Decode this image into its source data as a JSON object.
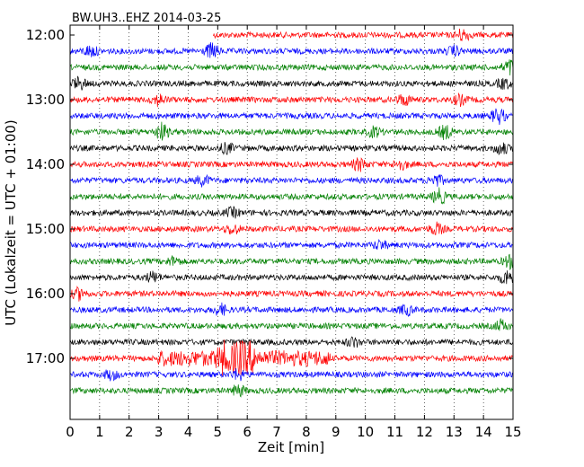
{
  "chart_data": {
    "type": "line",
    "title": "BW.UH3..EHZ 2014-03-25",
    "xlabel": "Zeit  [min]",
    "ylabel": "UTC (Lokalzeit = UTC + 01:00)",
    "xlim": [
      0,
      15
    ],
    "x_ticks": [
      "0",
      "1",
      "2",
      "3",
      "4",
      "5",
      "6",
      "7",
      "8",
      "9",
      "10",
      "11",
      "12",
      "13",
      "14",
      "15"
    ],
    "y_tick_labels": [
      "12:00",
      "13:00",
      "14:00",
      "15:00",
      "16:00",
      "17:00"
    ],
    "grid": "vertical dotted",
    "trace_colors": [
      "#ff0000",
      "#0000ff",
      "#008000",
      "#000000"
    ],
    "traces": [
      {
        "start": "12:00",
        "color": "#ff0000",
        "x_start": 4.85,
        "events": [
          {
            "t": 13.3,
            "amp": 2.0
          }
        ]
      },
      {
        "start": "12:15",
        "color": "#0000ff",
        "events": [
          {
            "t": 0.7,
            "amp": 1.8
          },
          {
            "t": 4.8,
            "amp": 2.5
          },
          {
            "t": 13.0,
            "amp": 1.5
          }
        ]
      },
      {
        "start": "12:30",
        "color": "#008000",
        "events": [
          {
            "t": 14.9,
            "amp": 2.5
          }
        ]
      },
      {
        "start": "12:45",
        "color": "#000000",
        "events": [
          {
            "t": 0.3,
            "amp": 2.0
          },
          {
            "t": 14.7,
            "amp": 1.6
          }
        ]
      },
      {
        "start": "13:00",
        "color": "#ff0000",
        "events": [
          {
            "t": 3.0,
            "amp": 1.8
          },
          {
            "t": 11.3,
            "amp": 1.8
          },
          {
            "t": 13.2,
            "amp": 1.6
          }
        ]
      },
      {
        "start": "13:15",
        "color": "#0000ff",
        "events": [
          {
            "t": 14.5,
            "amp": 2.6
          }
        ]
      },
      {
        "start": "13:30",
        "color": "#008000",
        "events": [
          {
            "t": 3.1,
            "amp": 2.8
          },
          {
            "t": 10.3,
            "amp": 1.6
          },
          {
            "t": 12.7,
            "amp": 2.2
          }
        ]
      },
      {
        "start": "13:45",
        "color": "#000000",
        "events": [
          {
            "t": 5.3,
            "amp": 1.6
          },
          {
            "t": 14.6,
            "amp": 2.0
          }
        ]
      },
      {
        "start": "14:00",
        "color": "#ff0000",
        "events": [
          {
            "t": 9.8,
            "amp": 2.0
          },
          {
            "t": 11.2,
            "amp": 1.6
          }
        ]
      },
      {
        "start": "14:15",
        "color": "#0000ff",
        "events": [
          {
            "t": 4.5,
            "amp": 1.6
          },
          {
            "t": 12.4,
            "amp": 1.8
          }
        ]
      },
      {
        "start": "14:30",
        "color": "#008000",
        "events": [
          {
            "t": 12.5,
            "amp": 2.4
          }
        ]
      },
      {
        "start": "14:45",
        "color": "#000000",
        "events": [
          {
            "t": 5.5,
            "amp": 1.5
          }
        ]
      },
      {
        "start": "15:00",
        "color": "#ff0000",
        "events": [
          {
            "t": 5.5,
            "amp": 1.6
          },
          {
            "t": 12.4,
            "amp": 1.8
          }
        ]
      },
      {
        "start": "15:15",
        "color": "#0000ff",
        "events": [
          {
            "t": 10.5,
            "amp": 1.4
          }
        ]
      },
      {
        "start": "15:30",
        "color": "#008000",
        "events": [
          {
            "t": 3.5,
            "amp": 1.4
          },
          {
            "t": 14.9,
            "amp": 2.0
          }
        ]
      },
      {
        "start": "15:45",
        "color": "#000000",
        "events": [
          {
            "t": 2.8,
            "amp": 1.6
          },
          {
            "t": 14.8,
            "amp": 2.4
          }
        ]
      },
      {
        "start": "16:00",
        "color": "#ff0000",
        "events": [
          {
            "t": 0.3,
            "amp": 1.8
          }
        ]
      },
      {
        "start": "16:15",
        "color": "#0000ff",
        "events": [
          {
            "t": 5.1,
            "amp": 1.8
          },
          {
            "t": 11.4,
            "amp": 1.6
          }
        ]
      },
      {
        "start": "16:30",
        "color": "#008000",
        "events": [
          {
            "t": 14.6,
            "amp": 1.8
          }
        ]
      },
      {
        "start": "16:45",
        "color": "#000000",
        "events": [
          {
            "t": 9.6,
            "amp": 1.5
          }
        ]
      },
      {
        "start": "17:00",
        "color": "#ff0000",
        "events": [
          {
            "t": 5.2,
            "amp": 4.0
          },
          {
            "t": 5.7,
            "amp": 4.5
          },
          {
            "t": 6.1,
            "amp": 3.5
          }
        ],
        "burst": {
          "from": 2.95,
          "to": 8.8,
          "amp": 1.8
        }
      },
      {
        "start": "17:15",
        "color": "#0000ff",
        "events": [
          {
            "t": 1.4,
            "amp": 1.6
          },
          {
            "t": 5.7,
            "amp": 1.8
          }
        ]
      },
      {
        "start": "17:30",
        "color": "#008000",
        "events": [
          {
            "t": 5.7,
            "amp": 1.8
          }
        ]
      }
    ]
  }
}
